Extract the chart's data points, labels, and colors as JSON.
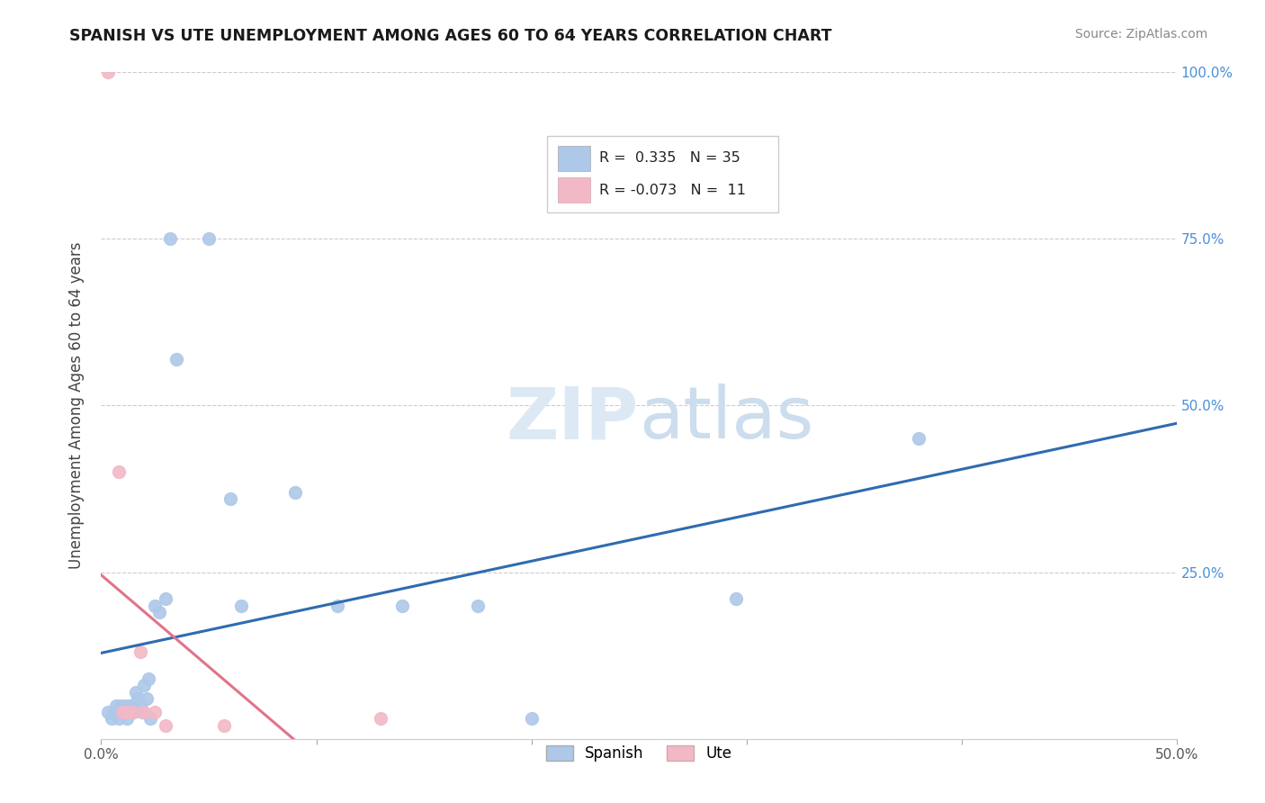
{
  "title": "SPANISH VS UTE UNEMPLOYMENT AMONG AGES 60 TO 64 YEARS CORRELATION CHART",
  "source": "Source: ZipAtlas.com",
  "ylabel": "Unemployment Among Ages 60 to 64 years",
  "xlim": [
    0.0,
    0.5
  ],
  "ylim": [
    0.0,
    1.0
  ],
  "spanish_R": 0.335,
  "spanish_N": 35,
  "ute_R": -0.073,
  "ute_N": 11,
  "spanish_color": "#adc8e8",
  "ute_color": "#f2b8c6",
  "spanish_line_color": "#2f6bb0",
  "ute_line_color": "#e0748a",
  "spanish_x": [
    0.003,
    0.005,
    0.006,
    0.007,
    0.008,
    0.009,
    0.01,
    0.011,
    0.012,
    0.013,
    0.014,
    0.015,
    0.016,
    0.017,
    0.018,
    0.019,
    0.02,
    0.021,
    0.022,
    0.023,
    0.025,
    0.027,
    0.03,
    0.032,
    0.035,
    0.05,
    0.06,
    0.065,
    0.09,
    0.11,
    0.14,
    0.175,
    0.2,
    0.295,
    0.38
  ],
  "spanish_y": [
    0.04,
    0.03,
    0.04,
    0.05,
    0.03,
    0.05,
    0.04,
    0.05,
    0.03,
    0.05,
    0.05,
    0.04,
    0.07,
    0.06,
    0.05,
    0.04,
    0.08,
    0.06,
    0.09,
    0.03,
    0.2,
    0.19,
    0.21,
    0.75,
    0.57,
    0.75,
    0.36,
    0.2,
    0.37,
    0.2,
    0.2,
    0.2,
    0.03,
    0.21,
    0.45
  ],
  "ute_x": [
    0.003,
    0.008,
    0.01,
    0.012,
    0.015,
    0.018,
    0.02,
    0.025,
    0.03,
    0.057,
    0.13
  ],
  "ute_y": [
    1.0,
    0.4,
    0.04,
    0.04,
    0.04,
    0.13,
    0.04,
    0.04,
    0.02,
    0.02,
    0.03
  ]
}
